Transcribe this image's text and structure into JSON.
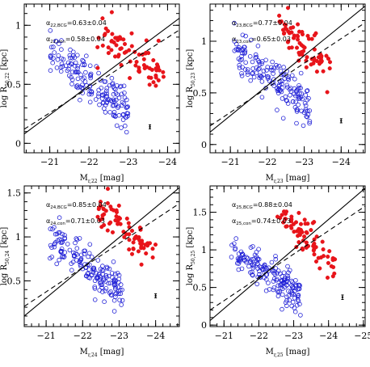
{
  "chart_data": [
    {
      "type": "scatter",
      "xlabel": {
        "main": "M",
        "sub": "r,22",
        "unit": " [mag]"
      },
      "ylabel": {
        "main": "log  R",
        "sub": "50,22",
        "unit": " [kpc]"
      },
      "xlim": [
        -20.35,
        -24.3
      ],
      "ylim": [
        -0.08,
        1.18
      ],
      "xticks": [
        -21,
        -22,
        -23,
        -24
      ],
      "yticks": [
        0,
        0.5,
        1
      ],
      "annotations": [
        {
          "sym": "α",
          "sub": "22,BCG",
          "text": "=0.63±0.04"
        },
        {
          "sym": "α",
          "sub": "22,con",
          "text": "=0.58±0.04"
        }
      ],
      "fits": {
        "solid": [
          [
            -20.35,
            0.08
          ],
          [
            -24.3,
            1.06
          ]
        ],
        "dashed": [
          [
            -20.35,
            0.12
          ],
          [
            -24.3,
            0.96
          ]
        ]
      },
      "errorbar": {
        "x": -23.55,
        "y": 0.14,
        "ey": 0.015
      },
      "cloud": {
        "x0": -22.2,
        "y0": 0.48,
        "slope": 0.24,
        "xspan": [
          -21.0,
          -23.0
        ],
        "spread": 0.09
      },
      "bcg": {
        "x0": -23.0,
        "y0": 0.78,
        "slope": 0.22,
        "xspan": [
          -22.2,
          -23.9
        ],
        "spread": 0.09
      },
      "series": [
        {
          "name": "",
          "color": "#1f1fd6",
          "marker": "open-circle"
        },
        {
          "name": "",
          "color": "#e8141a",
          "marker": "filled-circle"
        }
      ]
    },
    {
      "type": "scatter",
      "xlabel": {
        "main": "M",
        "sub": "r,23",
        "unit": " [mag]"
      },
      "ylabel": {
        "main": "log  R",
        "sub": "50,23",
        "unit": " [kpc]"
      },
      "xlim": [
        -20.45,
        -24.65
      ],
      "ylim": [
        -0.08,
        1.36
      ],
      "xticks": [
        -21,
        -22,
        -23,
        -24
      ],
      "yticks": [
        0,
        0.5,
        1
      ],
      "annotations": [
        {
          "sym": "α",
          "sub": "23,BCG",
          "text": "=0.77±0.04"
        },
        {
          "sym": "α",
          "sub": "23,con",
          "text": "=0.65±0.03"
        }
      ],
      "fits": {
        "solid": [
          [
            -20.45,
            0.12
          ],
          [
            -24.65,
            1.34
          ]
        ],
        "dashed": [
          [
            -20.45,
            0.18
          ],
          [
            -24.65,
            1.18
          ]
        ]
      },
      "errorbar": {
        "x": -24.0,
        "y": 0.23,
        "ey": 0.02
      },
      "cloud": {
        "x0": -22.3,
        "y0": 0.58,
        "slope": 0.27,
        "xspan": [
          -21.1,
          -23.2
        ],
        "spread": 0.1
      },
      "bcg": {
        "x0": -23.1,
        "y0": 0.92,
        "slope": 0.3,
        "xspan": [
          -22.3,
          -23.7
        ],
        "spread": 0.1
      }
    },
    {
      "type": "scatter",
      "xlabel": {
        "main": "M",
        "sub": "r,24",
        "unit": " [mag]"
      },
      "ylabel": {
        "main": "log  R",
        "sub": "50,24",
        "unit": " [kpc]"
      },
      "xlim": [
        -20.4,
        -24.65
      ],
      "ylim": [
        -0.02,
        1.58
      ],
      "xticks": [
        -21,
        -22,
        -23,
        -24
      ],
      "yticks": [
        0.5,
        1,
        1.5
      ],
      "annotations": [
        {
          "sym": "α",
          "sub": "24,BCG",
          "text": "=0.85±0.04"
        },
        {
          "sym": "α",
          "sub": "24,con",
          "text": "=0.71±0.03"
        }
      ],
      "fits": {
        "solid": [
          [
            -20.4,
            0.1
          ],
          [
            -24.65,
            1.56
          ]
        ],
        "dashed": [
          [
            -20.4,
            0.21
          ],
          [
            -24.65,
            1.38
          ]
        ]
      },
      "errorbar": {
        "x": -24.0,
        "y": 0.33,
        "ey": 0.02
      },
      "cloud": {
        "x0": -22.2,
        "y0": 0.64,
        "slope": 0.29,
        "xspan": [
          -21.1,
          -23.1
        ],
        "spread": 0.11
      },
      "bcg": {
        "x0": -23.3,
        "y0": 1.03,
        "slope": 0.33,
        "xspan": [
          -22.4,
          -24.0
        ],
        "spread": 0.1
      }
    },
    {
      "type": "scatter",
      "xlabel": {
        "main": "M",
        "sub": "r,25",
        "unit": " [mag]"
      },
      "ylabel": {
        "main": "log  R",
        "sub": "50,25",
        "unit": " [kpc]"
      },
      "xlim": [
        -20.6,
        -25.05
      ],
      "ylim": [
        -0.02,
        1.85
      ],
      "xticks": [
        -21,
        -22,
        -23,
        -24,
        -25
      ],
      "yticks": [
        0,
        0.5,
        1,
        1.5
      ],
      "annotations": [
        {
          "sym": "α",
          "sub": "25,BCG",
          "text": "=0.88±0.04"
        },
        {
          "sym": "α",
          "sub": "25,con",
          "text": "=0.74±0.03"
        }
      ],
      "fits": {
        "solid": [
          [
            -20.6,
            0.06
          ],
          [
            -25.05,
            1.82
          ]
        ],
        "dashed": [
          [
            -20.6,
            0.2
          ],
          [
            -25.05,
            1.58
          ]
        ]
      },
      "errorbar": {
        "x": -24.4,
        "y": 0.37,
        "ey": 0.03
      },
      "cloud": {
        "x0": -22.2,
        "y0": 0.7,
        "slope": 0.32,
        "xspan": [
          -21.2,
          -23.2
        ],
        "spread": 0.12
      },
      "bcg": {
        "x0": -23.4,
        "y0": 1.15,
        "slope": 0.36,
        "xspan": [
          -22.5,
          -24.2
        ],
        "spread": 0.12
      }
    }
  ]
}
